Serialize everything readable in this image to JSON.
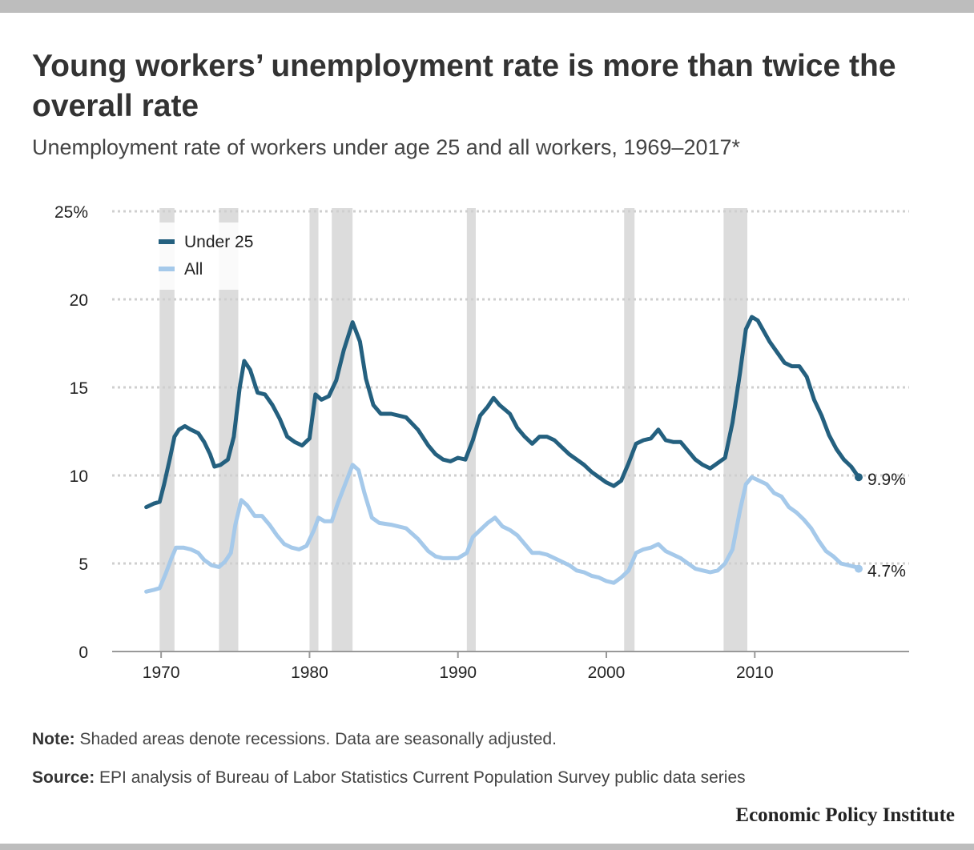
{
  "title": "Young workers’ unemployment rate is more than twice the overall rate",
  "subtitle": "Unemployment rate of workers under age 25 and all workers, 1969–2017*",
  "note": {
    "label": "Note:",
    "text": "Shaded areas denote recessions. Data are seasonally adjusted."
  },
  "source": {
    "label": "Source:",
    "text": "EPI analysis of Bureau of Labor Statistics Current Population Survey public data series"
  },
  "brand": "Economic Policy Institute",
  "colors": {
    "under25": "#24607f",
    "all": "#a5c9ea",
    "recession": "#dcdcdc",
    "grid": "#cfcfcf"
  },
  "chart_data": {
    "type": "line",
    "title": "Young workers’ unemployment rate is more than twice the overall rate",
    "subtitle": "Unemployment rate of workers under age 25 and all workers, 1969–2017*",
    "xlim": [
      1966.7,
      2020.4
    ],
    "ylim": [
      0,
      25
    ],
    "x_ticks": [
      1970,
      1980,
      1990,
      2000,
      2010
    ],
    "y_ticks": [
      0,
      5,
      10,
      15,
      20,
      25
    ],
    "y_tick_labels": [
      "0",
      "5",
      "10",
      "15",
      "20",
      "25%"
    ],
    "grid": "horizontal dotted",
    "legend": "top-left",
    "recessions": [
      [
        1969.9,
        1970.9
      ],
      [
        1973.9,
        1975.2
      ],
      [
        1980.0,
        1980.6
      ],
      [
        1981.5,
        1982.9
      ],
      [
        1990.6,
        1991.2
      ],
      [
        2001.2,
        2001.9
      ],
      [
        2007.9,
        2009.5
      ]
    ],
    "series": [
      {
        "name": "Under 25",
        "end_label": "9.9%",
        "points": [
          [
            1969.0,
            8.2
          ],
          [
            1969.5,
            8.4
          ],
          [
            1969.9,
            8.5
          ],
          [
            1970.2,
            9.5
          ],
          [
            1970.6,
            11.0
          ],
          [
            1970.9,
            12.2
          ],
          [
            1971.2,
            12.6
          ],
          [
            1971.6,
            12.8
          ],
          [
            1972.0,
            12.6
          ],
          [
            1972.5,
            12.4
          ],
          [
            1972.9,
            11.9
          ],
          [
            1973.3,
            11.2
          ],
          [
            1973.6,
            10.5
          ],
          [
            1974.0,
            10.6
          ],
          [
            1974.5,
            10.9
          ],
          [
            1974.9,
            12.2
          ],
          [
            1975.3,
            15.0
          ],
          [
            1975.6,
            16.5
          ],
          [
            1976.0,
            16.0
          ],
          [
            1976.5,
            14.7
          ],
          [
            1977.0,
            14.6
          ],
          [
            1977.5,
            14.0
          ],
          [
            1978.0,
            13.2
          ],
          [
            1978.5,
            12.2
          ],
          [
            1979.0,
            11.9
          ],
          [
            1979.5,
            11.7
          ],
          [
            1980.0,
            12.1
          ],
          [
            1980.4,
            14.6
          ],
          [
            1980.8,
            14.3
          ],
          [
            1981.3,
            14.5
          ],
          [
            1981.8,
            15.4
          ],
          [
            1982.3,
            17.1
          ],
          [
            1982.9,
            18.7
          ],
          [
            1983.4,
            17.6
          ],
          [
            1983.8,
            15.5
          ],
          [
            1984.3,
            14.0
          ],
          [
            1984.8,
            13.5
          ],
          [
            1985.5,
            13.5
          ],
          [
            1986.5,
            13.3
          ],
          [
            1987.3,
            12.6
          ],
          [
            1988.0,
            11.7
          ],
          [
            1988.5,
            11.2
          ],
          [
            1989.0,
            10.9
          ],
          [
            1989.5,
            10.8
          ],
          [
            1990.0,
            11.0
          ],
          [
            1990.5,
            10.9
          ],
          [
            1991.0,
            12.0
          ],
          [
            1991.5,
            13.4
          ],
          [
            1992.0,
            13.9
          ],
          [
            1992.4,
            14.4
          ],
          [
            1992.8,
            14.0
          ],
          [
            1993.5,
            13.5
          ],
          [
            1994.0,
            12.7
          ],
          [
            1994.5,
            12.2
          ],
          [
            1995.0,
            11.8
          ],
          [
            1995.5,
            12.2
          ],
          [
            1996.0,
            12.2
          ],
          [
            1996.5,
            12.0
          ],
          [
            1997.0,
            11.6
          ],
          [
            1997.5,
            11.2
          ],
          [
            1998.0,
            10.9
          ],
          [
            1998.5,
            10.6
          ],
          [
            1999.0,
            10.2
          ],
          [
            1999.5,
            9.9
          ],
          [
            2000.0,
            9.6
          ],
          [
            2000.5,
            9.4
          ],
          [
            2001.0,
            9.7
          ],
          [
            2001.5,
            10.7
          ],
          [
            2002.0,
            11.8
          ],
          [
            2002.5,
            12.0
          ],
          [
            2003.0,
            12.1
          ],
          [
            2003.5,
            12.6
          ],
          [
            2004.0,
            12.0
          ],
          [
            2004.5,
            11.9
          ],
          [
            2005.0,
            11.9
          ],
          [
            2005.5,
            11.4
          ],
          [
            2006.0,
            10.9
          ],
          [
            2006.5,
            10.6
          ],
          [
            2007.0,
            10.4
          ],
          [
            2007.5,
            10.7
          ],
          [
            2008.0,
            11.0
          ],
          [
            2008.5,
            13.0
          ],
          [
            2009.0,
            15.8
          ],
          [
            2009.4,
            18.3
          ],
          [
            2009.8,
            19.0
          ],
          [
            2010.2,
            18.8
          ],
          [
            2010.6,
            18.2
          ],
          [
            2011.0,
            17.6
          ],
          [
            2011.5,
            17.0
          ],
          [
            2012.0,
            16.4
          ],
          [
            2012.5,
            16.2
          ],
          [
            2013.0,
            16.2
          ],
          [
            2013.5,
            15.6
          ],
          [
            2014.0,
            14.3
          ],
          [
            2014.5,
            13.4
          ],
          [
            2015.0,
            12.3
          ],
          [
            2015.5,
            11.5
          ],
          [
            2016.0,
            10.9
          ],
          [
            2016.5,
            10.5
          ],
          [
            2017.0,
            9.9
          ]
        ]
      },
      {
        "name": "All",
        "end_label": "4.7%",
        "points": [
          [
            1969.0,
            3.4
          ],
          [
            1969.5,
            3.5
          ],
          [
            1969.9,
            3.6
          ],
          [
            1970.3,
            4.4
          ],
          [
            1970.7,
            5.3
          ],
          [
            1971.0,
            5.9
          ],
          [
            1971.5,
            5.9
          ],
          [
            1972.0,
            5.8
          ],
          [
            1972.5,
            5.6
          ],
          [
            1972.9,
            5.2
          ],
          [
            1973.4,
            4.9
          ],
          [
            1973.9,
            4.8
          ],
          [
            1974.3,
            5.1
          ],
          [
            1974.7,
            5.6
          ],
          [
            1975.0,
            7.2
          ],
          [
            1975.4,
            8.6
          ],
          [
            1975.8,
            8.3
          ],
          [
            1976.3,
            7.7
          ],
          [
            1976.8,
            7.7
          ],
          [
            1977.3,
            7.2
          ],
          [
            1977.8,
            6.6
          ],
          [
            1978.3,
            6.1
          ],
          [
            1978.8,
            5.9
          ],
          [
            1979.3,
            5.8
          ],
          [
            1979.8,
            6.0
          ],
          [
            1980.3,
            6.9
          ],
          [
            1980.6,
            7.6
          ],
          [
            1981.0,
            7.4
          ],
          [
            1981.5,
            7.4
          ],
          [
            1981.9,
            8.4
          ],
          [
            1982.4,
            9.5
          ],
          [
            1982.9,
            10.6
          ],
          [
            1983.3,
            10.3
          ],
          [
            1983.7,
            9.0
          ],
          [
            1984.2,
            7.6
          ],
          [
            1984.7,
            7.3
          ],
          [
            1985.5,
            7.2
          ],
          [
            1986.5,
            7.0
          ],
          [
            1987.3,
            6.4
          ],
          [
            1988.0,
            5.7
          ],
          [
            1988.5,
            5.4
          ],
          [
            1989.0,
            5.3
          ],
          [
            1989.5,
            5.3
          ],
          [
            1990.0,
            5.3
          ],
          [
            1990.6,
            5.6
          ],
          [
            1991.0,
            6.5
          ],
          [
            1991.5,
            6.9
          ],
          [
            1992.0,
            7.3
          ],
          [
            1992.5,
            7.6
          ],
          [
            1993.0,
            7.1
          ],
          [
            1993.5,
            6.9
          ],
          [
            1994.0,
            6.6
          ],
          [
            1994.5,
            6.1
          ],
          [
            1995.0,
            5.6
          ],
          [
            1995.5,
            5.6
          ],
          [
            1996.0,
            5.5
          ],
          [
            1996.5,
            5.3
          ],
          [
            1997.0,
            5.1
          ],
          [
            1997.5,
            4.9
          ],
          [
            1998.0,
            4.6
          ],
          [
            1998.5,
            4.5
          ],
          [
            1999.0,
            4.3
          ],
          [
            1999.5,
            4.2
          ],
          [
            2000.0,
            4.0
          ],
          [
            2000.5,
            3.9
          ],
          [
            2001.0,
            4.2
          ],
          [
            2001.5,
            4.6
          ],
          [
            2002.0,
            5.6
          ],
          [
            2002.5,
            5.8
          ],
          [
            2003.0,
            5.9
          ],
          [
            2003.5,
            6.1
          ],
          [
            2004.0,
            5.7
          ],
          [
            2004.5,
            5.5
          ],
          [
            2005.0,
            5.3
          ],
          [
            2005.5,
            5.0
          ],
          [
            2006.0,
            4.7
          ],
          [
            2006.5,
            4.6
          ],
          [
            2007.0,
            4.5
          ],
          [
            2007.5,
            4.6
          ],
          [
            2008.0,
            5.0
          ],
          [
            2008.5,
            5.8
          ],
          [
            2009.0,
            8.0
          ],
          [
            2009.4,
            9.5
          ],
          [
            2009.8,
            9.9
          ],
          [
            2010.3,
            9.7
          ],
          [
            2010.8,
            9.5
          ],
          [
            2011.3,
            9.0
          ],
          [
            2011.8,
            8.8
          ],
          [
            2012.3,
            8.2
          ],
          [
            2012.8,
            7.9
          ],
          [
            2013.3,
            7.5
          ],
          [
            2013.8,
            7.0
          ],
          [
            2014.3,
            6.3
          ],
          [
            2014.8,
            5.7
          ],
          [
            2015.3,
            5.4
          ],
          [
            2015.8,
            5.0
          ],
          [
            2016.3,
            4.9
          ],
          [
            2016.8,
            4.8
          ],
          [
            2017.0,
            4.7
          ]
        ]
      }
    ]
  }
}
